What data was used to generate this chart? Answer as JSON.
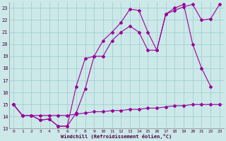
{
  "line1_x": [
    0,
    1,
    2,
    3,
    4,
    5,
    6,
    7,
    8,
    9,
    10,
    11,
    12,
    13,
    14,
    15,
    16,
    17,
    18,
    19,
    20,
    21,
    22,
    23
  ],
  "line1_y": [
    15.0,
    14.1,
    14.1,
    13.7,
    13.8,
    13.2,
    13.2,
    16.5,
    18.8,
    19.0,
    20.3,
    21.0,
    21.8,
    22.9,
    22.8,
    21.0,
    19.5,
    22.5,
    22.8,
    23.1,
    23.3,
    22.0,
    22.1,
    23.3
  ],
  "line2_x": [
    0,
    1,
    2,
    3,
    4,
    5,
    6,
    7,
    8,
    9,
    10,
    11,
    12,
    13,
    14,
    15,
    16,
    17,
    18,
    19,
    20,
    21,
    22
  ],
  "line2_y": [
    15.0,
    14.1,
    14.1,
    13.7,
    13.8,
    13.2,
    13.2,
    14.3,
    16.3,
    19.0,
    19.0,
    20.3,
    21.0,
    21.5,
    21.0,
    19.5,
    19.5,
    22.5,
    23.0,
    23.3,
    20.0,
    18.0,
    16.5
  ],
  "line3_x": [
    0,
    1,
    2,
    3,
    4,
    5,
    6,
    7,
    8,
    9,
    10,
    11,
    12,
    13,
    14,
    15,
    16,
    17,
    18,
    19,
    20,
    21,
    22,
    23
  ],
  "line3_y": [
    15.0,
    14.1,
    14.1,
    14.1,
    14.1,
    14.1,
    14.1,
    14.2,
    14.3,
    14.4,
    14.4,
    14.5,
    14.5,
    14.6,
    14.6,
    14.7,
    14.7,
    14.8,
    14.9,
    14.9,
    15.0,
    15.0,
    15.0,
    15.0
  ],
  "line_color": "#990099",
  "bg_color": "#cce8e8",
  "plot_bg_color": "#cce8e8",
  "grid_color": "#99cccc",
  "xlabel": "Windchill (Refroidissement éolien,°C)",
  "xlim": [
    -0.5,
    23.5
  ],
  "ylim": [
    13,
    23.5
  ],
  "xticks": [
    0,
    1,
    2,
    3,
    4,
    5,
    6,
    7,
    8,
    9,
    10,
    11,
    12,
    13,
    14,
    15,
    16,
    17,
    18,
    19,
    20,
    21,
    22,
    23
  ],
  "yticks": [
    13,
    14,
    15,
    16,
    17,
    18,
    19,
    20,
    21,
    22,
    23
  ],
  "marker": "D",
  "markersize": 2.0,
  "linewidth": 0.8
}
